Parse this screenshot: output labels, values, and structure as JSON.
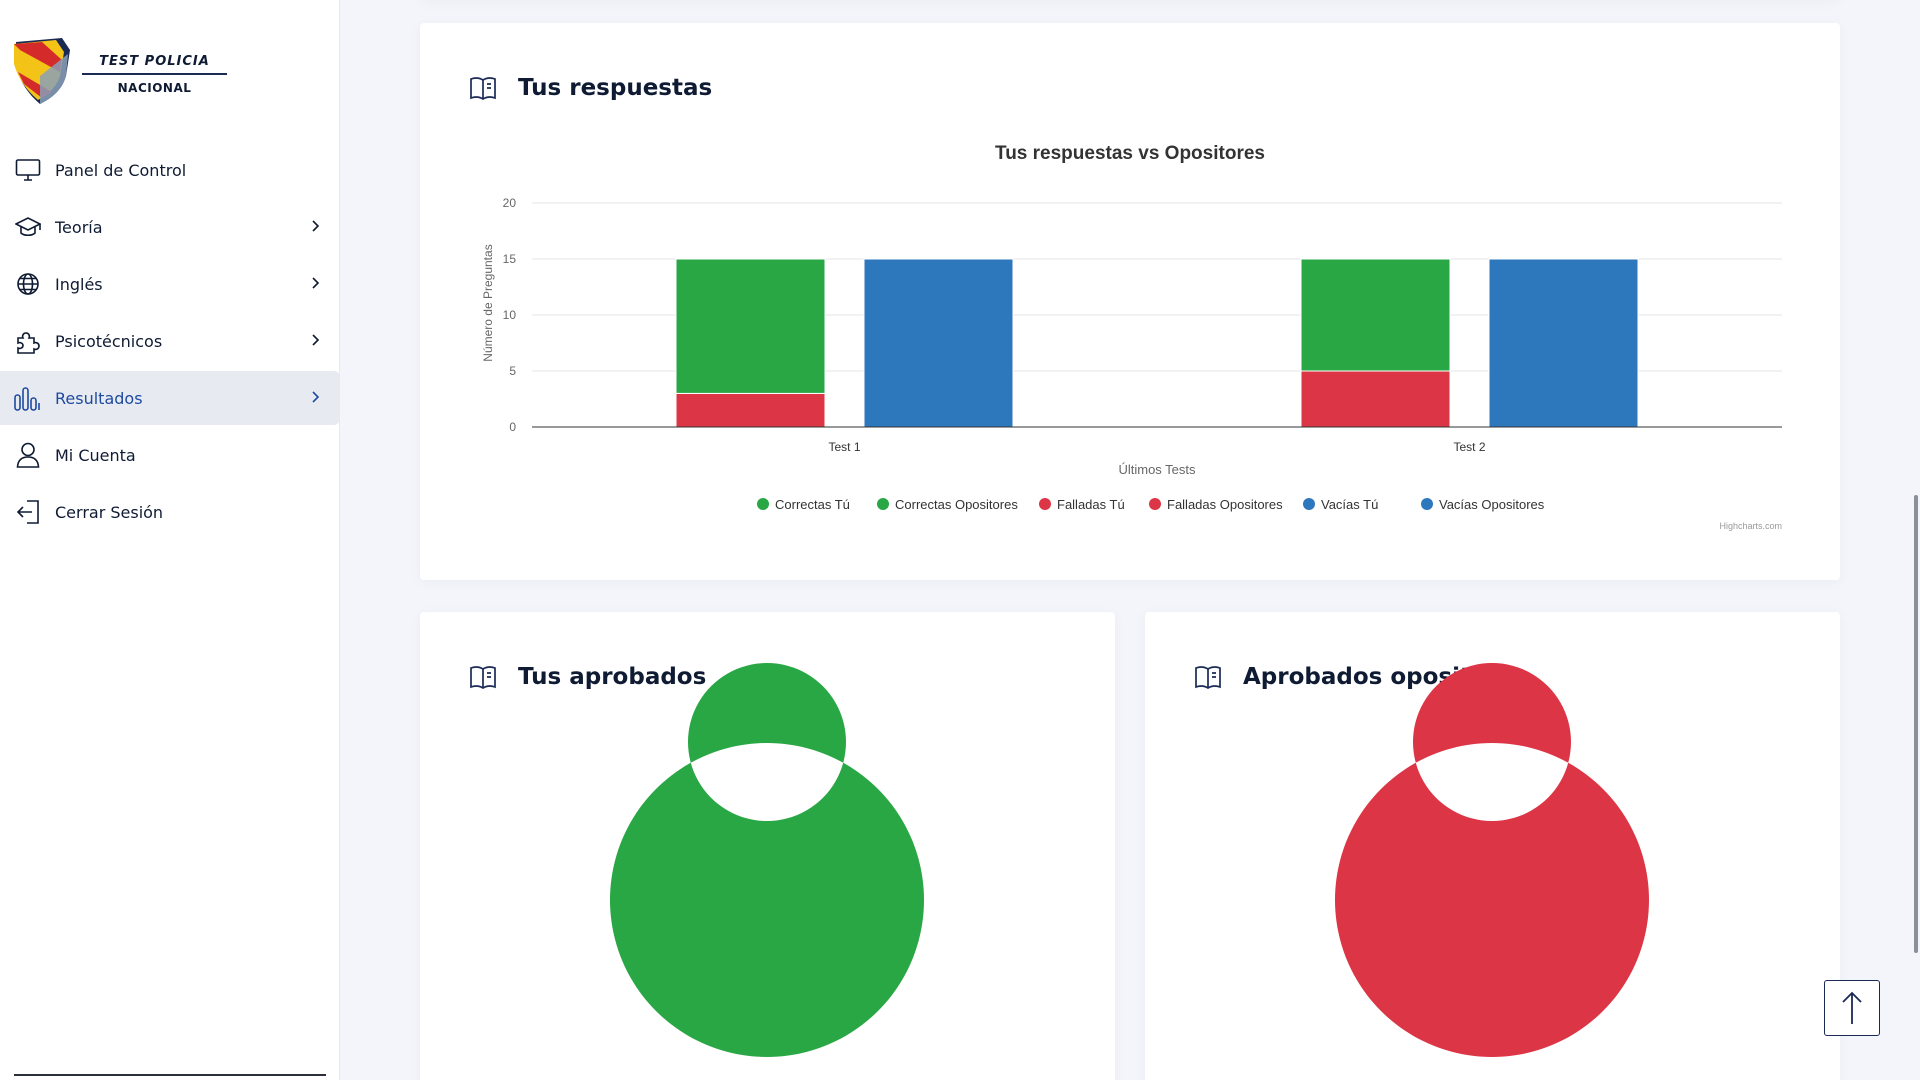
{
  "brand": {
    "line1": "TEST POLICIA",
    "line2": "NACIONAL"
  },
  "sidebar": {
    "items": [
      {
        "label": "Panel de Control",
        "icon": "monitor-icon",
        "has_chevron": false
      },
      {
        "label": "Teoría",
        "icon": "graduation-cap-icon",
        "has_chevron": true
      },
      {
        "label": "Inglés",
        "icon": "globe-icon",
        "has_chevron": true
      },
      {
        "label": "Psicotécnicos",
        "icon": "puzzle-icon",
        "has_chevron": true
      },
      {
        "label": "Resultados",
        "icon": "bar-chart-icon",
        "has_chevron": true,
        "active": true
      },
      {
        "label": "Mi Cuenta",
        "icon": "user-icon",
        "has_chevron": false
      },
      {
        "label": "Cerrar Sesión",
        "icon": "logout-icon",
        "has_chevron": false
      }
    ]
  },
  "cards": {
    "respuestas_title": "Tus respuestas",
    "aprobados_title": "Tus aprobados",
    "aprobados_opositores_title": "Aprobados opositores"
  },
  "colors": {
    "green": "#2aa745",
    "red": "#dc3545",
    "blue": "#2d77bd",
    "accent": "#1f4aa0"
  },
  "credits": "Highcharts.com",
  "chart_data": [
    {
      "type": "bar",
      "title": "Tus respuestas vs Opositores",
      "xlabel": "Últimos Tests",
      "ylabel": "Número de Preguntas",
      "categories": [
        "Test 1",
        "Test 2"
      ],
      "ylim": [
        0,
        20
      ],
      "yticks": [
        0,
        5,
        10,
        15,
        20
      ],
      "stacking": "normal",
      "legend_position": "bottom",
      "series": [
        {
          "name": "Correctas Tú",
          "stack": "tu",
          "color": "#2aa745",
          "values": [
            12,
            10
          ]
        },
        {
          "name": "Correctas Opositores",
          "stack": "opositores",
          "color": "#2aa745",
          "values": [
            0,
            0
          ]
        },
        {
          "name": "Falladas Tú",
          "stack": "tu",
          "color": "#dc3545",
          "values": [
            3,
            5
          ]
        },
        {
          "name": "Falladas Opositores",
          "stack": "opositores",
          "color": "#dc3545",
          "values": [
            0,
            0
          ]
        },
        {
          "name": "Vacías Tú",
          "stack": "tu",
          "color": "#2d77bd",
          "values": [
            0,
            0
          ]
        },
        {
          "name": "Vacías Opositores",
          "stack": "opositores",
          "color": "#2d77bd",
          "values": [
            15,
            15
          ]
        }
      ]
    },
    {
      "type": "pie",
      "categories": [
        ""
      ],
      "values": [
        100
      ],
      "colors": [
        "#2aa745"
      ]
    },
    {
      "type": "pie",
      "categories": [
        ""
      ],
      "values": [
        100
      ],
      "colors": [
        "#dc3545"
      ]
    }
  ]
}
